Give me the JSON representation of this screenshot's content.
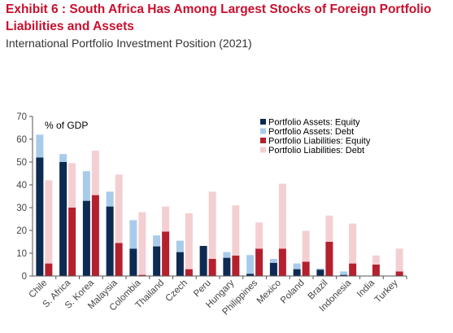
{
  "header": {
    "title": "Exhibit 6 : South Africa Has Among Largest Stocks of Foreign Portfolio Liabilities and Assets",
    "subtitle": "International Portfolio Investment Position (2021)"
  },
  "chart_data": {
    "type": "bar",
    "categories": [
      "Chile",
      "S. Africa",
      "S. Korea",
      "Malaysia",
      "Colombia",
      "Thailand",
      "Czech",
      "Peru",
      "Hungary",
      "Philippines",
      "Mexico",
      "Poland",
      "Brazil",
      "Indonesia",
      "India",
      "Turkey"
    ],
    "unit_label": "% of GDP",
    "ylim": [
      0,
      70
    ],
    "yticks": [
      0,
      10,
      20,
      30,
      40,
      50,
      60,
      70
    ],
    "series": [
      {
        "name": "Portfolio Assets: Equity",
        "group": "assets",
        "color": "#0d2a52",
        "values": [
          52.0,
          50.0,
          33.0,
          30.5,
          12.0,
          13.0,
          10.5,
          13.2,
          8.0,
          1.0,
          5.8,
          3.0,
          2.8,
          0.5,
          0.0,
          0.0
        ]
      },
      {
        "name": "Portfolio Assets: Debt",
        "group": "assets",
        "color": "#a9cbea",
        "values": [
          10.0,
          3.5,
          13.0,
          6.5,
          12.5,
          4.8,
          5.0,
          0.0,
          2.5,
          8.2,
          1.7,
          2.5,
          0.5,
          1.5,
          0.0,
          0.0
        ]
      },
      {
        "name": "Portfolio Liabilities: Equity",
        "group": "liabilities",
        "color": "#b5202e",
        "values": [
          5.5,
          30.0,
          35.5,
          14.5,
          0.5,
          19.5,
          3.0,
          7.5,
          9.0,
          12.0,
          12.0,
          6.3,
          15.0,
          5.5,
          5.0,
          2.0
        ]
      },
      {
        "name": "Portfolio Liabilities: Debt",
        "group": "liabilities",
        "color": "#f4cfd2",
        "values": [
          36.5,
          19.5,
          19.5,
          30.0,
          27.5,
          11.0,
          24.5,
          29.5,
          22.0,
          11.5,
          28.5,
          13.5,
          11.5,
          17.5,
          4.0,
          10.0
        ]
      }
    ],
    "grid": false,
    "legend_position": "top-right"
  }
}
